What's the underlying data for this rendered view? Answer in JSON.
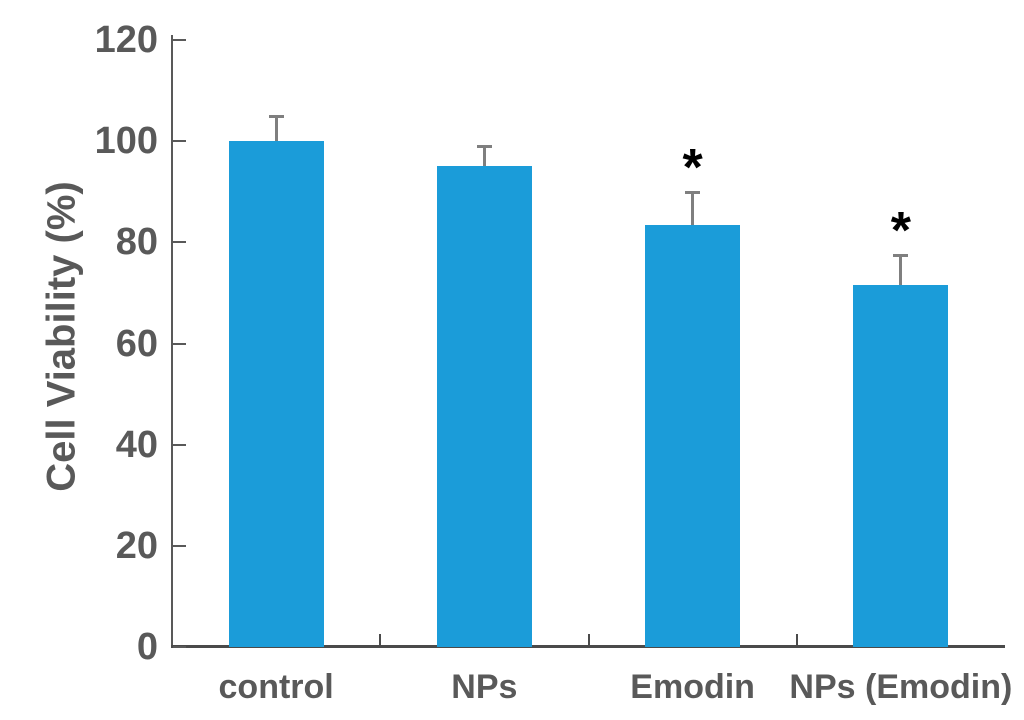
{
  "chart_data": {
    "type": "bar",
    "title": "",
    "xlabel": "",
    "ylabel": "Cell Viability (%)",
    "categories": [
      "control",
      "NPs",
      "Emodin",
      "NPs (Emodin)"
    ],
    "values": [
      100,
      95,
      83.5,
      71.5
    ],
    "errors": [
      5,
      4,
      6.5,
      6
    ],
    "significance": [
      "",
      "",
      "*",
      "*"
    ],
    "ylim": [
      0,
      120
    ],
    "yticks": [
      0,
      20,
      40,
      60,
      80,
      100,
      120
    ],
    "grid": false,
    "legend_position": "none",
    "bar_color": "#1B9CD9",
    "error_bar_color": "#7F7F7F",
    "axis_color": "#595959",
    "text_color": "#595959",
    "significance_color": "#000000"
  }
}
